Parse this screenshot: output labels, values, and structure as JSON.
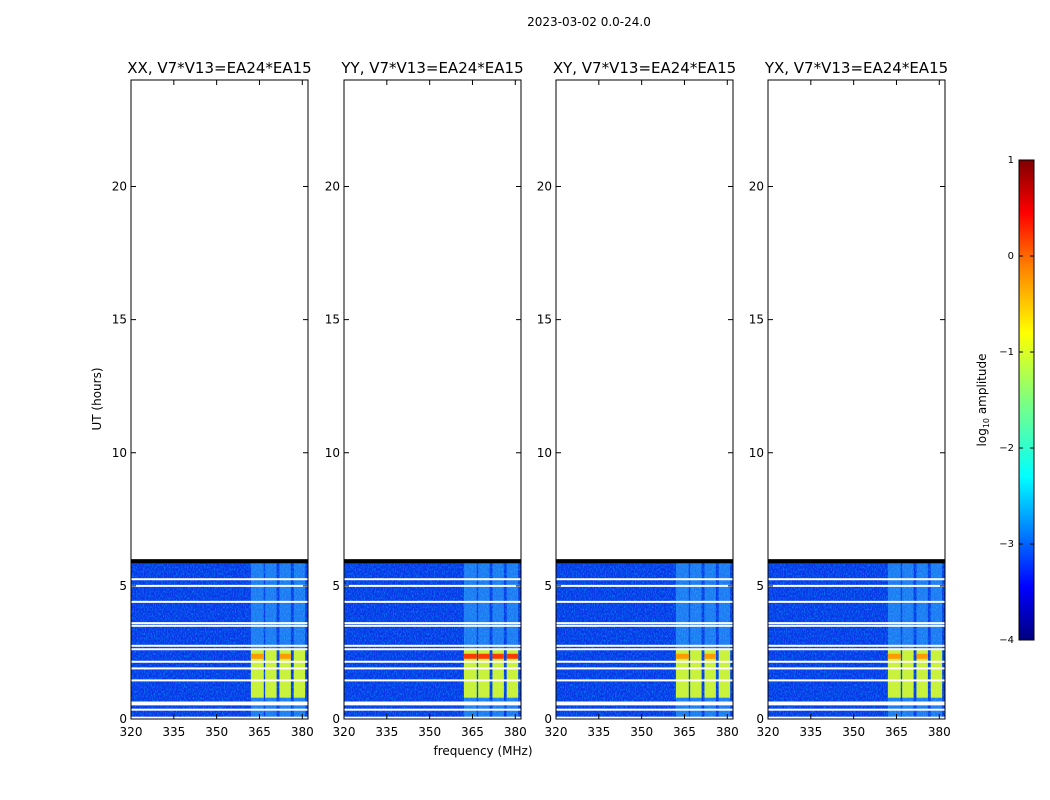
{
  "figure": {
    "suptitle": "2023-03-02 0.0-24.0",
    "xlabel": "frequency (MHz)",
    "ylabel": "UT (hours)"
  },
  "chart_data": {
    "type": "heatmap",
    "subtype": "dynamic spectrum (waterfall)",
    "xlim": [
      320,
      382
    ],
    "ylim": [
      0,
      24
    ],
    "xticks": [
      320,
      335,
      350,
      365,
      380
    ],
    "yticks": [
      0,
      5,
      10,
      15,
      20
    ],
    "data_extent_hours": [
      0,
      6.0
    ],
    "panels": [
      {
        "title": "XX, V7*V13=EA24*EA15",
        "polarization": "XX"
      },
      {
        "title": "YY, V7*V13=EA24*EA15",
        "polarization": "YY"
      },
      {
        "title": "XY, V7*V13=EA24*EA15",
        "polarization": "XY"
      },
      {
        "title": "YX, V7*V13=EA24*EA15",
        "polarization": "YX"
      }
    ],
    "flagged_hours": [
      0.05,
      0.35,
      0.55,
      0.62,
      1.45,
      1.9,
      2.15,
      2.62,
      2.75,
      3.5,
      3.6,
      4.4,
      5.0,
      5.25,
      5.9
    ],
    "rfi_bands_mhz": [
      [
        362,
        366.5
      ],
      [
        367,
        371
      ],
      [
        372,
        376
      ],
      [
        377,
        381
      ]
    ],
    "rfi_strong_hours": [
      0.8,
      2.6
    ],
    "colorbar": {
      "label": "log10 amplitude",
      "label_main": "log",
      "label_sub": "10",
      "label_rest": " amplitude",
      "range": [
        -4,
        1
      ],
      "ticks": [
        1,
        0,
        -1,
        -2,
        -3,
        -4
      ],
      "colormap": "jet",
      "colors": [
        "#00007f",
        "#0000ff",
        "#007fff",
        "#00ffff",
        "#7fff7f",
        "#ffff00",
        "#ff7f00",
        "#ff0000",
        "#7f0000"
      ]
    }
  }
}
